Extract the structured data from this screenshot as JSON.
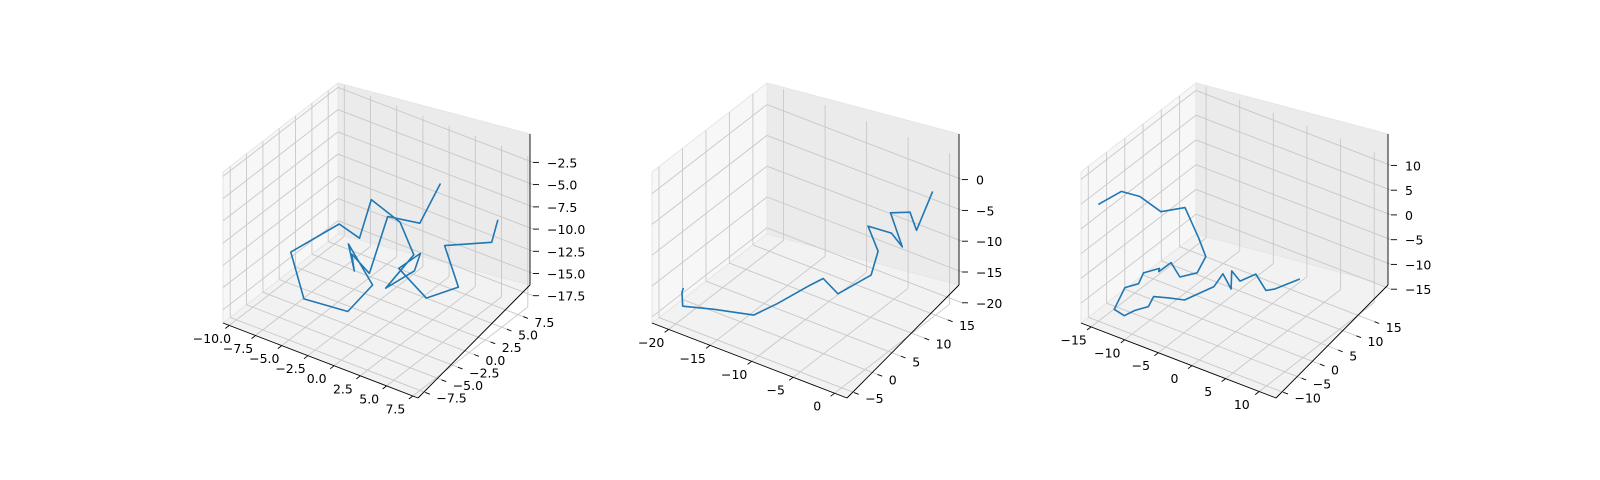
{
  "colors": {
    "series": "#1f77b4"
  },
  "chart_data": [
    {
      "type": "line3d",
      "grid": true,
      "xlim": [
        -10.6,
        8.0
      ],
      "ylim": [
        -8.6,
        9.0
      ],
      "zlim": [
        -19.0,
        -2.0
      ],
      "xticks": [
        -10.0,
        -7.5,
        -5.0,
        -2.5,
        0.0,
        2.5,
        5.0,
        7.5
      ],
      "xtick_labels": [
        "−10.0",
        "−7.5",
        "−5.0",
        "−2.5",
        "0.0",
        "2.5",
        "5.0",
        "7.5"
      ],
      "yticks": [
        -7.5,
        -5.0,
        -2.5,
        0.0,
        2.5,
        5.0,
        7.5
      ],
      "ytick_labels": [
        "−7.5",
        "−5.0",
        "−2.5",
        "0.0",
        "2.5",
        "5.0",
        "7.5"
      ],
      "zticks": [
        -17.5,
        -15.0,
        -12.5,
        -10.0,
        -7.5,
        -5.0,
        -2.5
      ],
      "ztick_labels": [
        "−17.5",
        "−15.0",
        "−12.5",
        "−10.0",
        "−7.5",
        "−5.0",
        "−2.5"
      ],
      "series": [
        {
          "x": [
            3.5,
            2.5,
            1.0,
            0.5,
            -1.5,
            -2.5,
            -4.0,
            -2.0,
            -2.5,
            -4.5,
            -7.0,
            -5.5,
            -4.5,
            -4.0,
            -2.5,
            -1.5,
            -2.0,
            -0.5,
            1.0,
            0.5,
            2.5,
            4.0,
            3.0,
            5.0,
            6.5
          ],
          "y": [
            2.0,
            0.5,
            -2.0,
            -4.0,
            -3.5,
            -1.5,
            0.0,
            0.5,
            -2.5,
            -6.0,
            -4.0,
            1.0,
            2.5,
            3.5,
            5.5,
            6.0,
            2.5,
            4.5,
            3.0,
            0.5,
            1.5,
            4.0,
            3.5,
            7.5,
            6.0
          ],
          "z": [
            -3.0,
            -7.0,
            -5.5,
            -11.0,
            -10.0,
            -13.5,
            -12.0,
            -16.0,
            -17.5,
            -15.0,
            -12.0,
            -11.0,
            -13.0,
            -9.0,
            -12.0,
            -15.5,
            -17.5,
            -16.0,
            -12.5,
            -13.0,
            -16.0,
            -15.5,
            -11.0,
            -12.0,
            -8.0
          ]
        }
      ]
    },
    {
      "type": "line3d",
      "grid": true,
      "xlim": [
        -22.0,
        1.5
      ],
      "ylim": [
        -6.5,
        18.0
      ],
      "zlim": [
        -21.0,
        3.5
      ],
      "xticks": [
        -20,
        -15,
        -10,
        -5,
        0
      ],
      "xtick_labels": [
        "−20",
        "−15",
        "−10",
        "−5",
        "0"
      ],
      "yticks": [
        -5,
        0,
        5,
        10,
        15
      ],
      "ytick_labels": [
        "−5",
        "0",
        "5",
        "10",
        "15"
      ],
      "zticks": [
        -20,
        -15,
        -10,
        -5,
        0
      ],
      "ztick_labels": [
        "−20",
        "−15",
        "−10",
        "−5",
        "0"
      ],
      "series": [
        {
          "x": [
            -20.5,
            -21.5,
            -20.0,
            -16.5,
            -14.0,
            -12.0,
            -10.0,
            -9.0,
            -7.5,
            -5.5,
            -5.5,
            -7.0,
            -5.0,
            -4.0,
            -4.0,
            -2.5,
            -2.0,
            -1.5
          ],
          "y": [
            -2.5,
            -1.0,
            -3.5,
            -3.0,
            1.0,
            2.5,
            6.0,
            7.0,
            7.5,
            11.0,
            12.5,
            13.0,
            14.5,
            15.0,
            12.5,
            14.0,
            14.5,
            17.0
          ],
          "z": [
            -17.0,
            -19.0,
            -19.0,
            -18.0,
            -20.0,
            -18.0,
            -16.0,
            -15.0,
            -17.0,
            -15.0,
            -12.0,
            -9.0,
            -10.0,
            -12.0,
            -5.0,
            -5.0,
            -8.0,
            -3.0
          ]
        }
      ]
    },
    {
      "type": "line3d",
      "grid": true,
      "xlim": [
        -16.5,
        12.5
      ],
      "ylim": [
        -12.0,
        19.5
      ],
      "zlim": [
        -19.0,
        11.5
      ],
      "xticks": [
        -15,
        -10,
        -5,
        0,
        5,
        10
      ],
      "xtick_labels": [
        "−15",
        "−10",
        "−5",
        "0",
        "5",
        "10"
      ],
      "yticks": [
        -10,
        -5,
        0,
        5,
        10,
        15
      ],
      "ytick_labels": [
        "−10",
        "−5",
        "0",
        "5",
        "10",
        "15"
      ],
      "zticks": [
        -15,
        -10,
        -5,
        0,
        5,
        10
      ],
      "ztick_labels": [
        "−15",
        "−10",
        "−5",
        "0",
        "5",
        "10"
      ],
      "series": [
        {
          "x": [
            -16.0,
            -13.5,
            -11.0,
            -9.5,
            -7.0,
            -5.5,
            -5.0,
            -6.0,
            -7.5,
            -8.0,
            -9.0,
            -10.0,
            -11.0,
            -12.0,
            -13.5,
            -14.0,
            -12.5,
            -11.5,
            -10.0,
            -9.5,
            -7.5,
            -6.0,
            -3.5,
            -3.0,
            -1.5,
            -2.5,
            -1.0,
            0.0,
            1.5,
            2.5,
            4.0
          ],
          "y": [
            -8.0,
            -6.5,
            -6.0,
            -3.0,
            -1.0,
            0.0,
            1.0,
            0.5,
            -1.5,
            -3.0,
            -4.5,
            -2.5,
            -5.0,
            -4.5,
            -5.5,
            -7.5,
            -7.5,
            -6.5,
            -5.5,
            -5.0,
            -4.5,
            -3.0,
            0.5,
            2.0,
            1.5,
            3.5,
            3.0,
            5.5,
            5.5,
            6.0,
            10.0
          ],
          "z": [
            3.0,
            6.0,
            6.0,
            2.0,
            3.0,
            -3.0,
            -7.0,
            -10.5,
            -11.0,
            -7.5,
            -9.0,
            -10.0,
            -10.0,
            -13.0,
            -14.0,
            -17.5,
            -18.0,
            -17.0,
            -16.0,
            -14.0,
            -13.5,
            -14.0,
            -12.0,
            -10.0,
            -12.0,
            -10.0,
            -11.0,
            -10.5,
            -13.0,
            -12.5,
            -12.0
          ]
        }
      ]
    }
  ]
}
